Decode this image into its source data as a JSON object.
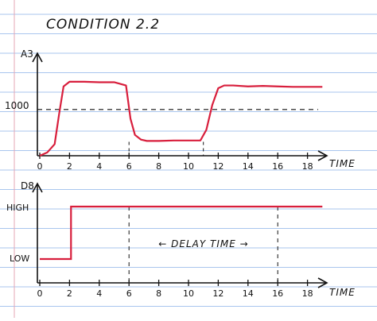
{
  "title": "CONDITION 2.2",
  "colors": {
    "paper": "#ffffff",
    "rule_lines": "#a9c6ee",
    "margin_line": "#e4a7b5",
    "ink": "#111111",
    "signal": "#d81e3c"
  },
  "chart_data": [
    {
      "type": "line",
      "title": "CONDITION 2.2",
      "ylabel": "A3",
      "xlabel": "TIME",
      "x_ticks": [
        0,
        2,
        4,
        6,
        8,
        10,
        12,
        14,
        16,
        18
      ],
      "y_tick_labels": [
        "1000"
      ],
      "reference_line": {
        "y": 1000,
        "style": "dashed"
      },
      "vertical_markers": [
        6,
        11
      ],
      "xlim": [
        0,
        19
      ],
      "ylim": [
        0,
        2200
      ],
      "grid": false,
      "series": [
        {
          "color": "#d81e3c",
          "x": [
            0,
            0.5,
            1.0,
            1.3,
            1.6,
            2.0,
            3.0,
            4.0,
            5.0,
            5.8,
            6.1,
            6.4,
            6.8,
            7.2,
            8.0,
            9.0,
            10.0,
            10.8,
            11.2,
            11.6,
            12.0,
            12.4,
            13.0,
            14.0,
            15.0,
            16.0,
            17.0,
            18.0,
            19.0
          ],
          "y": [
            0,
            70,
            250,
            900,
            1500,
            1600,
            1600,
            1590,
            1590,
            1520,
            800,
            450,
            350,
            320,
            320,
            330,
            330,
            330,
            560,
            1100,
            1460,
            1520,
            1520,
            1500,
            1510,
            1500,
            1490,
            1490,
            1490
          ]
        }
      ]
    },
    {
      "type": "line",
      "ylabel": "D8",
      "xlabel": "TIME",
      "x_ticks": [
        0,
        2,
        4,
        6,
        8,
        10,
        12,
        14,
        16,
        18
      ],
      "y_categories": [
        "LOW",
        "HIGH"
      ],
      "vertical_markers": [
        6,
        16
      ],
      "annotation": {
        "text": "← DELAY TIME →",
        "x_from": 6,
        "x_to": 16
      },
      "xlim": [
        0,
        19
      ],
      "grid": false,
      "series": [
        {
          "color": "#d81e3c",
          "x": [
            0,
            2.1,
            2.1,
            19
          ],
          "y": [
            "LOW",
            "LOW",
            "HIGH",
            "HIGH"
          ]
        }
      ]
    }
  ]
}
